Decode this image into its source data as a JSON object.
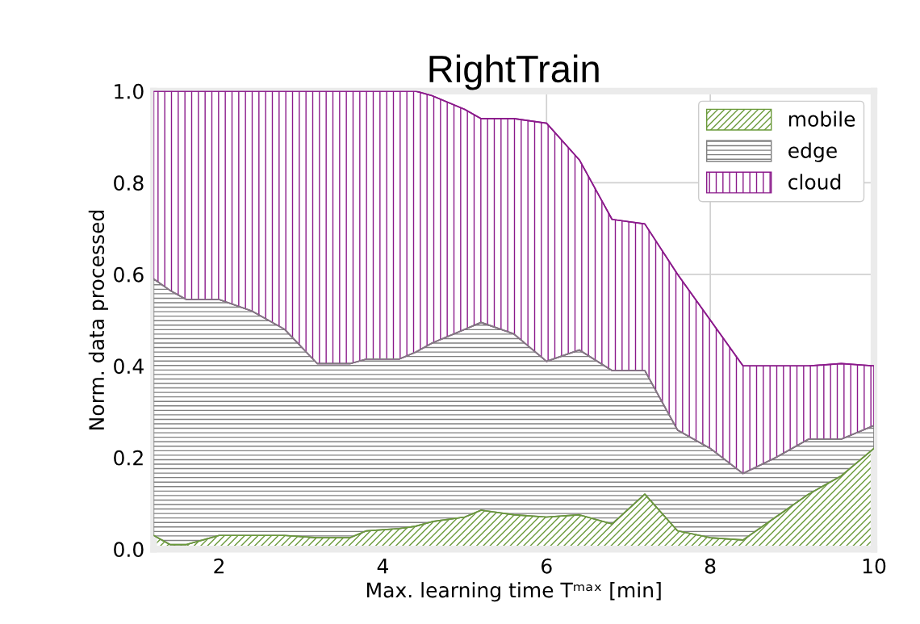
{
  "chart_data": {
    "type": "area",
    "stacked": true,
    "title": "RightTrain",
    "xlabel": "Max. learning time Tᵐᵃˣ [min]",
    "ylabel": "Norm. data processed",
    "x": [
      1.2,
      1.4,
      1.6,
      2.0,
      2.4,
      2.8,
      3.2,
      3.6,
      3.8,
      4.2,
      4.4,
      4.6,
      5.0,
      5.2,
      5.6,
      6.0,
      6.4,
      6.8,
      7.2,
      7.6,
      8.0,
      8.4,
      8.8,
      9.2,
      9.6,
      10
    ],
    "series": [
      {
        "name": "mobile",
        "color": "#6a9a3a",
        "values": [
          0.03,
          0.01,
          0.01,
          0.03,
          0.03,
          0.03,
          0.025,
          0.025,
          0.04,
          0.045,
          0.05,
          0.06,
          0.07,
          0.085,
          0.075,
          0.07,
          0.075,
          0.055,
          0.12,
          0.04,
          0.025,
          0.02,
          0.07,
          0.12,
          0.16,
          0.22
        ]
      },
      {
        "name": "edge",
        "color": "#808080",
        "values": [
          0.56,
          0.555,
          0.535,
          0.515,
          0.49,
          0.45,
          0.38,
          0.38,
          0.375,
          0.37,
          0.38,
          0.39,
          0.41,
          0.41,
          0.395,
          0.34,
          0.36,
          0.335,
          0.27,
          0.22,
          0.195,
          0.145,
          0.13,
          0.12,
          0.08,
          0.05
        ]
      },
      {
        "name": "cloud",
        "color": "#8b1a8b",
        "values": [
          0.41,
          0.435,
          0.455,
          0.455,
          0.48,
          0.52,
          0.595,
          0.595,
          0.585,
          0.585,
          0.57,
          0.54,
          0.48,
          0.445,
          0.47,
          0.52,
          0.415,
          0.33,
          0.32,
          0.34,
          0.28,
          0.235,
          0.2,
          0.16,
          0.165,
          0.13
        ]
      }
    ],
    "xlim": [
      1.2,
      10
    ],
    "ylim": [
      0,
      1
    ],
    "xticks": [
      2,
      4,
      6,
      8,
      10
    ],
    "yticks": [
      {
        "value": 0,
        "label": "0.0"
      },
      {
        "value": 0.2,
        "label": "0.2"
      },
      {
        "value": 0.4,
        "label": "0.4"
      },
      {
        "value": 0.6,
        "label": "0.6"
      },
      {
        "value": 0.8,
        "label": "0.8"
      },
      {
        "value": 1,
        "label": "1.0"
      }
    ],
    "grid": true,
    "legend": "top right"
  }
}
